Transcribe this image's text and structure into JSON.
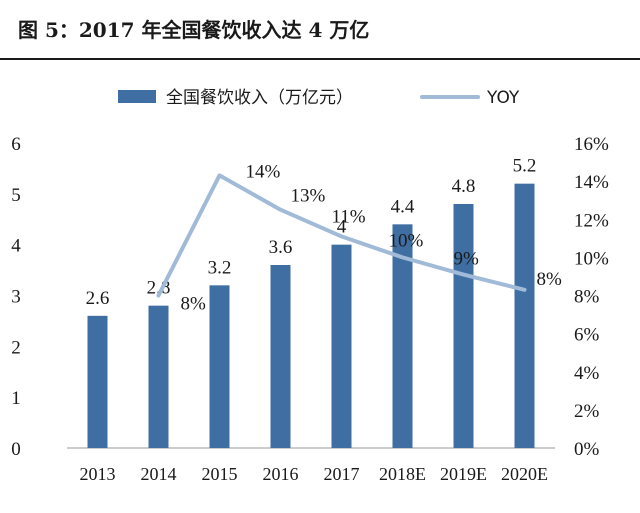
{
  "figure": {
    "title": "图 5：2017 年全国餐饮收入达 4 万亿"
  },
  "colors": {
    "bar": "#3f6ea3",
    "line": "#a0bad8",
    "text": "#1a1a1a",
    "axis": "#999999"
  },
  "chart_data": {
    "type": "bar+line",
    "categories": [
      "2013",
      "2014",
      "2015",
      "2016",
      "2017",
      "2018E",
      "2019E",
      "2020E"
    ],
    "series": [
      {
        "name": "全国餐饮收入（万亿元）",
        "type": "bar",
        "axis": "left",
        "values": [
          2.6,
          2.8,
          3.2,
          3.6,
          4,
          4.4,
          4.8,
          5.2
        ],
        "labels": [
          "2.6",
          "2.8",
          "3.2",
          "3.6",
          "4",
          "4.4",
          "4.8",
          "5.2"
        ]
      },
      {
        "name": "YOY",
        "type": "line",
        "axis": "right",
        "values": [
          null,
          0.08,
          0.143,
          0.125,
          0.111,
          0.1,
          0.091,
          0.083
        ],
        "labels": [
          null,
          "8%",
          "14%",
          "13%",
          "11%",
          "10%",
          "9%",
          "8%"
        ]
      }
    ],
    "y_left": {
      "range": [
        0,
        6
      ],
      "ticks": [
        "0",
        "1",
        "2",
        "3",
        "4",
        "5",
        "6"
      ]
    },
    "y_right": {
      "range": [
        0,
        0.16
      ],
      "ticks": [
        "0%",
        "2%",
        "4%",
        "6%",
        "8%",
        "10%",
        "12%",
        "14%",
        "16%"
      ]
    },
    "legend": {
      "position": "top"
    },
    "grid": false
  }
}
